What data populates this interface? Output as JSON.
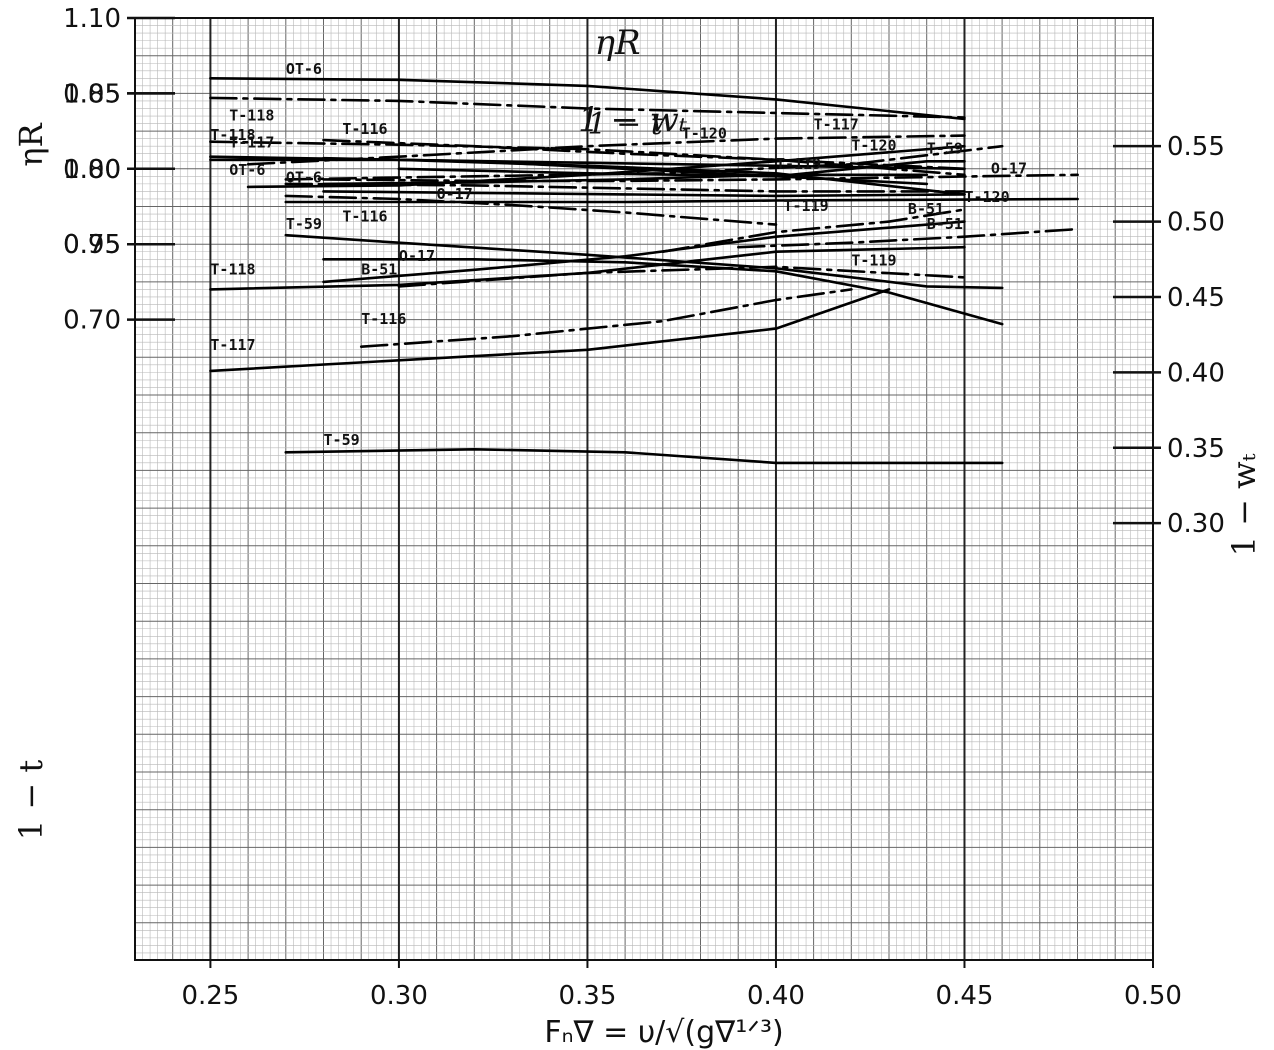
{
  "chart_data": {
    "type": "line",
    "x_label": "Fₙ∇ = υ/√(g∇¹ᐟ³)",
    "x_ticks": [
      "0.25",
      "0.30",
      "0.35",
      "0.40",
      "0.45",
      "0.50"
    ],
    "xlim": [
      0.23,
      0.5
    ],
    "grid": true,
    "panels": [
      {
        "id": "eta_r",
        "title": "ηR",
        "axis_label": "ηR",
        "axis_side": "left",
        "ylim": [
          0.95,
          1.1
        ],
        "ticks": [
          "1.10",
          "1.05",
          "1.00",
          "0.95"
        ],
        "series": [
          {
            "name": "OT-6",
            "style": "solid",
            "points": [
              [
                0.25,
                1.06
              ],
              [
                0.3,
                1.059
              ],
              [
                0.35,
                1.055
              ],
              [
                0.4,
                1.046
              ],
              [
                0.45,
                1.033
              ]
            ]
          },
          {
            "name": "T-118",
            "style": "dashed",
            "points": [
              [
                0.25,
                1.047
              ],
              [
                0.3,
                1.045
              ],
              [
                0.35,
                1.04
              ],
              [
                0.4,
                1.037
              ],
              [
                0.45,
                1.034
              ]
            ]
          },
          {
            "name": "T-117",
            "style": "solid",
            "points": [
              [
                0.25,
                1.008
              ],
              [
                0.3,
                1.006
              ],
              [
                0.35,
                1.004
              ],
              [
                0.4,
                1.002
              ],
              [
                0.45,
                1.0
              ]
            ]
          },
          {
            "name": "T-120",
            "style": "dashed",
            "points": [
              [
                0.26,
                1.003
              ],
              [
                0.3,
                1.008
              ],
              [
                0.35,
                1.015
              ],
              [
                0.4,
                1.02
              ],
              [
                0.45,
                1.022
              ]
            ]
          },
          {
            "name": "T-59",
            "style": "dashed",
            "points": [
              [
                0.27,
                0.993
              ],
              [
                0.32,
                0.995
              ],
              [
                0.37,
                0.997
              ],
              [
                0.42,
                1.003
              ],
              [
                0.46,
                1.015
              ]
            ]
          },
          {
            "name": "T-119",
            "style": "solid",
            "points": [
              [
                0.28,
                0.99
              ],
              [
                0.32,
                0.991
              ],
              [
                0.36,
                0.993
              ],
              [
                0.4,
                0.996
              ],
              [
                0.44,
                0.996
              ]
            ]
          },
          {
            "name": "O-17",
            "style": "dashed",
            "points": [
              [
                0.28,
                0.993
              ],
              [
                0.32,
                0.992
              ],
              [
                0.36,
                0.992
              ],
              [
                0.4,
                0.993
              ],
              [
                0.48,
                0.996
              ]
            ]
          },
          {
            "name": "B-51",
            "style": "solid",
            "points": [
              [
                0.28,
                0.985
              ],
              [
                0.32,
                0.984
              ],
              [
                0.36,
                0.983
              ],
              [
                0.4,
                0.982
              ],
              [
                0.45,
                0.983
              ]
            ]
          },
          {
            "name": "T-116",
            "style": "dashed",
            "points": [
              [
                0.27,
                0.982
              ],
              [
                0.3,
                0.98
              ],
              [
                0.33,
                0.976
              ],
              [
                0.36,
                0.971
              ],
              [
                0.4,
                0.963
              ]
            ]
          }
        ]
      },
      {
        "id": "one_minus_wt",
        "title": "1 − wₜ",
        "axis_label": "1 − wₜ",
        "axis_side": "right",
        "ylim": [
          0.3,
          0.55
        ],
        "ticks": [
          "0.55",
          "0.50",
          "0.45",
          "0.40",
          "0.35",
          "0.30"
        ],
        "series": [
          {
            "name": "OT-6",
            "style": "solid",
            "points": [
              [
                0.26,
                0.523
              ],
              [
                0.3,
                0.524
              ],
              [
                0.35,
                0.531
              ],
              [
                0.4,
                0.54
              ],
              [
                0.45,
                0.55
              ]
            ]
          },
          {
            "name": "T-120",
            "style": "dashed",
            "points": [
              [
                0.37,
                0.48
              ],
              [
                0.4,
                0.493
              ],
              [
                0.43,
                0.5
              ],
              [
                0.45,
                0.508
              ]
            ]
          },
          {
            "name": "B-51",
            "style": "dashed",
            "points": [
              [
                0.39,
                0.483
              ],
              [
                0.42,
                0.486
              ],
              [
                0.45,
                0.49
              ],
              [
                0.48,
                0.495
              ]
            ]
          },
          {
            "name": "O-17",
            "style": "solid",
            "points": [
              [
                0.28,
                0.46
              ],
              [
                0.32,
                0.468
              ],
              [
                0.36,
                0.477
              ],
              [
                0.4,
                0.49
              ],
              [
                0.45,
                0.5
              ]
            ]
          },
          {
            "name": "T-118",
            "style": "solid",
            "points": [
              [
                0.25,
                0.455
              ],
              [
                0.3,
                0.458
              ],
              [
                0.35,
                0.466
              ],
              [
                0.4,
                0.48
              ],
              [
                0.45,
                0.483
              ]
            ]
          },
          {
            "name": "T-119",
            "style": "dashed",
            "points": [
              [
                0.3,
                0.457
              ],
              [
                0.35,
                0.466
              ],
              [
                0.4,
                0.47
              ],
              [
                0.45,
                0.463
              ]
            ]
          },
          {
            "name": "T-116",
            "style": "dashed",
            "points": [
              [
                0.29,
                0.417
              ],
              [
                0.33,
                0.424
              ],
              [
                0.37,
                0.434
              ],
              [
                0.4,
                0.448
              ],
              [
                0.42,
                0.455
              ]
            ]
          },
          {
            "name": "T-117",
            "style": "solid",
            "points": [
              [
                0.25,
                0.401
              ],
              [
                0.3,
                0.408
              ],
              [
                0.35,
                0.415
              ],
              [
                0.4,
                0.429
              ],
              [
                0.43,
                0.455
              ]
            ]
          },
          {
            "name": "T-59",
            "style": "solid",
            "points": [
              [
                0.27,
                0.347
              ],
              [
                0.32,
                0.349
              ],
              [
                0.36,
                0.347
              ],
              [
                0.4,
                0.34
              ],
              [
                0.46,
                0.34
              ]
            ]
          }
        ]
      },
      {
        "id": "one_minus_t",
        "title": "1 − t",
        "axis_label": "1 − t",
        "axis_side": "left",
        "ylim": [
          0.7,
          0.85
        ],
        "ticks": [
          "0.85",
          "0.80",
          "0.75",
          "0.70"
        ],
        "series": [
          {
            "name": "T-118",
            "style": "dashed",
            "points": [
              [
                0.25,
                0.818
              ],
              [
                0.3,
                0.816
              ],
              [
                0.35,
                0.813
              ],
              [
                0.4,
                0.806
              ],
              [
                0.45,
                0.796
              ]
            ]
          },
          {
            "name": "T-116",
            "style": "dashed",
            "points": [
              [
                0.28,
                0.819
              ],
              [
                0.32,
                0.815
              ],
              [
                0.36,
                0.81
              ],
              [
                0.4,
                0.806
              ],
              [
                0.45,
                0.8
              ]
            ]
          },
          {
            "name": "OT-6",
            "style": "solid",
            "points": [
              [
                0.25,
                0.806
              ],
              [
                0.3,
                0.806
              ],
              [
                0.35,
                0.802
              ],
              [
                0.4,
                0.797
              ],
              [
                0.45,
                0.783
              ]
            ]
          },
          {
            "name": "T-117",
            "style": "solid",
            "points": [
              [
                0.28,
                0.807
              ],
              [
                0.32,
                0.805
              ],
              [
                0.36,
                0.8
              ],
              [
                0.4,
                0.795
              ],
              [
                0.44,
                0.79
              ]
            ]
          },
          {
            "name": "T-120",
            "style": "solid",
            "points": [
              [
                0.3,
                0.8
              ],
              [
                0.35,
                0.797
              ],
              [
                0.4,
                0.795
              ],
              [
                0.44,
                0.805
              ],
              [
                0.45,
                0.805
              ]
            ]
          },
          {
            "name": "T-119",
            "style": "dashed",
            "points": [
              [
                0.27,
                0.79
              ],
              [
                0.32,
                0.789
              ],
              [
                0.36,
                0.787
              ],
              [
                0.4,
                0.785
              ],
              [
                0.45,
                0.785
              ]
            ]
          },
          {
            "name": "O-17",
            "style": "solid",
            "points": [
              [
                0.27,
                0.778
              ],
              [
                0.32,
                0.778
              ],
              [
                0.36,
                0.778
              ],
              [
                0.4,
                0.779
              ],
              [
                0.48,
                0.78
              ]
            ]
          },
          {
            "name": "T-59",
            "style": "solid",
            "points": [
              [
                0.27,
                0.756
              ],
              [
                0.3,
                0.751
              ],
              [
                0.35,
                0.743
              ],
              [
                0.4,
                0.734
              ],
              [
                0.44,
                0.722
              ],
              [
                0.46,
                0.721
              ]
            ]
          },
          {
            "name": "B-51",
            "style": "solid",
            "points": [
              [
                0.28,
                0.74
              ],
              [
                0.32,
                0.74
              ],
              [
                0.36,
                0.738
              ],
              [
                0.4,
                0.732
              ],
              [
                0.43,
                0.718
              ],
              [
                0.46,
                0.697
              ]
            ]
          }
        ]
      }
    ]
  }
}
